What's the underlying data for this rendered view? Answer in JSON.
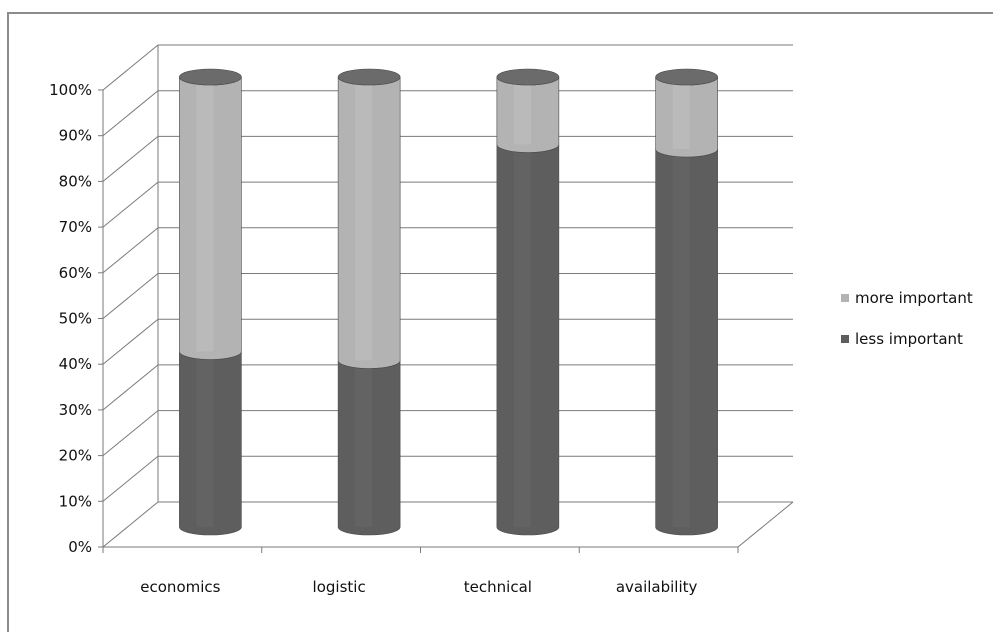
{
  "chart_data": {
    "type": "bar",
    "stacked": true,
    "percent_stacked": true,
    "style": "3d-cylinder",
    "title": "",
    "xlabel": "",
    "ylabel": "",
    "ylim": [
      0,
      100
    ],
    "yticks": [
      "0%",
      "10%",
      "20%",
      "30%",
      "40%",
      "50%",
      "60%",
      "70%",
      "80%",
      "90%",
      "100%"
    ],
    "categories": [
      "economics",
      "logistic",
      "technical",
      "availability"
    ],
    "series": [
      {
        "name": "less important",
        "values": [
          39,
          37,
          85,
          84
        ],
        "color": "#5e5e5e"
      },
      {
        "name": "more important",
        "values": [
          61,
          63,
          15,
          16
        ],
        "color": "#b3b3b3"
      }
    ],
    "legend_position": "right",
    "grid": true
  }
}
